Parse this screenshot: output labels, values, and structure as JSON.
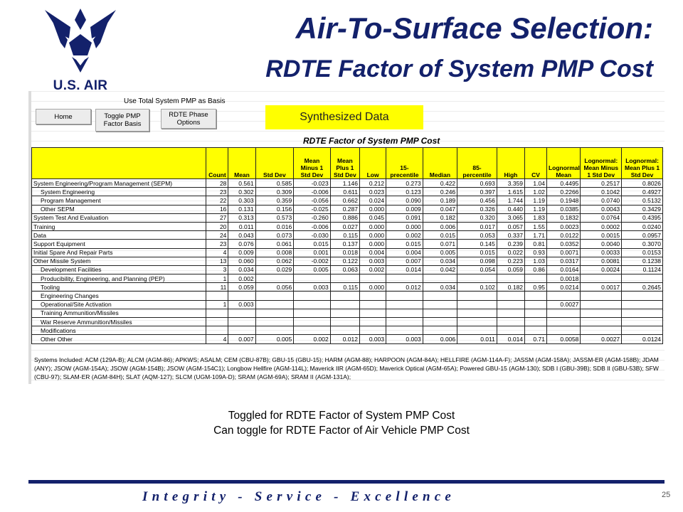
{
  "logo": {
    "text": "U.S. AIR FORCE",
    "color": "#13216b"
  },
  "title": {
    "line1": "Air-To-Surface Selection:",
    "line2": "RDTE Factor of System PMP Cost",
    "color": "#13216b"
  },
  "spreadsheet": {
    "basis_label": "Use Total System PMP as Basis",
    "buttons": {
      "home": "Home",
      "toggle": "Toggle PMP Factor Basis",
      "phase": "RDTE Phase Options"
    },
    "synth_label": "Synthesized Data",
    "synth_color": "#ffff00",
    "table_title": "RDTE Factor of System PMP Cost",
    "columns": [
      "",
      "Count",
      "Mean",
      "Std Dev",
      "Mean Minus 1 Std Dev",
      "Mean Plus 1 Std Dev",
      "Low",
      "15-precentile",
      "Median",
      "85-percentile",
      "High",
      "CV",
      "Lognormal Mean",
      "Lognormal: Mean Minus 1 Std Dev",
      "Lognormal: Mean Plus 1 Std Dev"
    ],
    "rows": [
      [
        "System Engineering/Program Management (SEPM)",
        "28",
        "0.561",
        "0.585",
        "-0.023",
        "1.146",
        "0.212",
        "0.273",
        "0.422",
        "0.693",
        "3.359",
        "1.04",
        "0.4495",
        "0.2517",
        "0.8026"
      ],
      [
        "System Engineering",
        "23",
        "0.302",
        "0.309",
        "-0.006",
        "0.611",
        "0.023",
        "0.123",
        "0.246",
        "0.397",
        "1.615",
        "1.02",
        "0.2266",
        "0.1042",
        "0.4927"
      ],
      [
        "Program Management",
        "22",
        "0.303",
        "0.359",
        "-0.056",
        "0.662",
        "0.024",
        "0.090",
        "0.189",
        "0.456",
        "1.744",
        "1.19",
        "0.1948",
        "0.0740",
        "0.5132"
      ],
      [
        "Other SEPM",
        "16",
        "0.131",
        "0.156",
        "-0.025",
        "0.287",
        "0.000",
        "0.009",
        "0.047",
        "0.326",
        "0.440",
        "1.19",
        "0.0385",
        "0.0043",
        "0.3429"
      ],
      [
        "System Test And Evaluation",
        "27",
        "0.313",
        "0.573",
        "-0.260",
        "0.886",
        "0.045",
        "0.091",
        "0.182",
        "0.320",
        "3.065",
        "1.83",
        "0.1832",
        "0.0764",
        "0.4395"
      ],
      [
        "Training",
        "20",
        "0.011",
        "0.016",
        "-0.006",
        "0.027",
        "0.000",
        "0.000",
        "0.006",
        "0.017",
        "0.057",
        "1.55",
        "0.0023",
        "0.0002",
        "0.0240"
      ],
      [
        "Data",
        "24",
        "0.043",
        "0.073",
        "-0.030",
        "0.115",
        "0.000",
        "0.002",
        "0.015",
        "0.053",
        "0.337",
        "1.71",
        "0.0122",
        "0.0015",
        "0.0957"
      ],
      [
        "Support Equipment",
        "23",
        "0.076",
        "0.061",
        "0.015",
        "0.137",
        "0.000",
        "0.015",
        "0.071",
        "0.145",
        "0.239",
        "0.81",
        "0.0352",
        "0.0040",
        "0.3070"
      ],
      [
        "Initial Spare And Repair Parts",
        "4",
        "0.009",
        "0.008",
        "0.001",
        "0.018",
        "0.004",
        "0.004",
        "0.005",
        "0.015",
        "0.022",
        "0.93",
        "0.0071",
        "0.0033",
        "0.0153"
      ],
      [
        "Other Missile System",
        "13",
        "0.060",
        "0.062",
        "-0.002",
        "0.122",
        "0.003",
        "0.007",
        "0.034",
        "0.098",
        "0.223",
        "1.03",
        "0.0317",
        "0.0081",
        "0.1238"
      ],
      [
        "Development Facilities",
        "3",
        "0.034",
        "0.029",
        "0.005",
        "0.063",
        "0.002",
        "0.014",
        "0.042",
        "0.054",
        "0.059",
        "0.86",
        "0.0164",
        "0.0024",
        "0.1124"
      ],
      [
        "Producibility, Engineering, and Planning (PEP)",
        "1",
        "0.002",
        "",
        "",
        "",
        "",
        "",
        "",
        "",
        "",
        "",
        "0.0018",
        "",
        ""
      ],
      [
        "Tooling",
        "11",
        "0.059",
        "0.056",
        "0.003",
        "0.115",
        "0.000",
        "0.012",
        "0.034",
        "0.102",
        "0.182",
        "0.95",
        "0.0214",
        "0.0017",
        "0.2645"
      ],
      [
        "Engineering Changes",
        "",
        "",
        "",
        "",
        "",
        "",
        "",
        "",
        "",
        "",
        "",
        "",
        "",
        ""
      ],
      [
        "Operational/Site Activation",
        "1",
        "0.003",
        "",
        "",
        "",
        "",
        "",
        "",
        "",
        "",
        "",
        "0.0027",
        "",
        ""
      ],
      [
        "Training Ammunition/Missiles",
        "",
        "",
        "",
        "",
        "",
        "",
        "",
        "",
        "",
        "",
        "",
        "",
        "",
        ""
      ],
      [
        "War Reserve Ammunition/Missiles",
        "",
        "",
        "",
        "",
        "",
        "",
        "",
        "",
        "",
        "",
        "",
        "",
        "",
        ""
      ],
      [
        "Modifications",
        "",
        "",
        "",
        "",
        "",
        "",
        "",
        "",
        "",
        "",
        "",
        "",
        "",
        ""
      ],
      [
        "Other Other",
        "4",
        "0.007",
        "0.005",
        "0.002",
        "0.012",
        "0.003",
        "0.003",
        "0.006",
        "0.011",
        "0.014",
        "0.71",
        "0.0058",
        "0.0027",
        "0.0124"
      ]
    ],
    "systems_text": "Systems Included: ACM (129A-B); ALCM (AGM-86); APKWS; ASALM; CEM (CBU-87B); GBU-15 (GBU-15); HARM (AGM-88); HARPOON (AGM-84A); HELLFIRE (AGM-114A-F); JASSM (AGM-158A); JASSM-ER (AGM-158B); JDAM (ANY); JSOW (AGM-154A); JSOW (AGM-154B); JSOW (AGM-154C1); Longbow Hellfire (AGM-114L); Maverick IIR (AGM-65D); Maverick Optical (AGM-65A); Powered GBU-15 (AGM-130); SDB I (GBU-39B); SDB II (GBU-53B); SFW (CBU-97); SLAM-ER (AGM-84H); SLAT (AQM-127); SLCM (UGM-109A-D); SRAM (AGM-69A); SRAM II (AGM-131A);"
  },
  "notes": {
    "line1": "Toggled for RDTE Factor of System PMP Cost",
    "line2": "Can toggle for RDTE Factor of Air Vehicle PMP Cost"
  },
  "footer": {
    "motto": "Integrity - Service - Excellence",
    "page": "25",
    "color": "#13216b"
  }
}
